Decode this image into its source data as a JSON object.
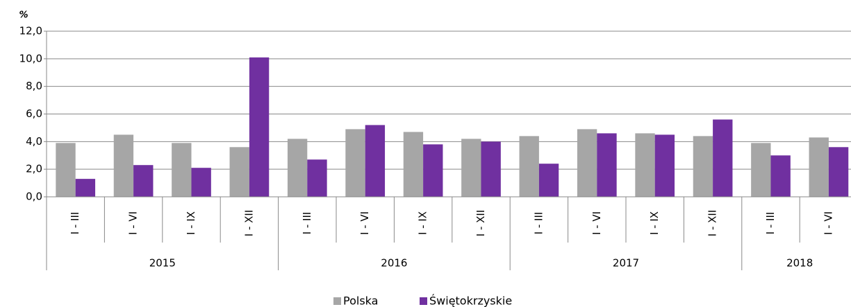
{
  "chart_data": {
    "type": "bar",
    "ylabel": "%",
    "groups": [
      {
        "name": "2015",
        "categories": [
          "I - III",
          "I - VI",
          "I - IX",
          "I - XII"
        ]
      },
      {
        "name": "2016",
        "categories": [
          "I - III",
          "I - VI",
          "I - IX",
          "I - XII"
        ]
      },
      {
        "name": "2017",
        "categories": [
          "I - III",
          "I - VI",
          "I - IX",
          "I - XII"
        ]
      },
      {
        "name": "2018",
        "categories": [
          "I - III",
          "I - VI"
        ]
      }
    ],
    "series": [
      {
        "name": "Polska",
        "color": "#a6a6a6",
        "values": [
          3.9,
          4.5,
          3.9,
          3.6,
          4.2,
          4.9,
          4.7,
          4.2,
          4.4,
          4.9,
          4.6,
          4.4,
          3.9,
          4.3
        ]
      },
      {
        "name": "Świętokrzyskie",
        "color": "#7030a0",
        "values": [
          1.3,
          2.3,
          2.1,
          10.1,
          2.7,
          5.2,
          3.8,
          4.0,
          2.4,
          4.6,
          4.5,
          5.6,
          3.0,
          3.6
        ]
      }
    ],
    "ylim": [
      0,
      12
    ],
    "yticks": [
      {
        "value": 0,
        "label": "0,0"
      },
      {
        "value": 2,
        "label": "2,0"
      },
      {
        "value": 4,
        "label": "4,0"
      },
      {
        "value": 6,
        "label": "6,0"
      },
      {
        "value": 8,
        "label": "8,0"
      },
      {
        "value": 10,
        "label": "10,0"
      },
      {
        "value": 12,
        "label": "12,0"
      }
    ],
    "grid": true,
    "legend": "bottom"
  }
}
